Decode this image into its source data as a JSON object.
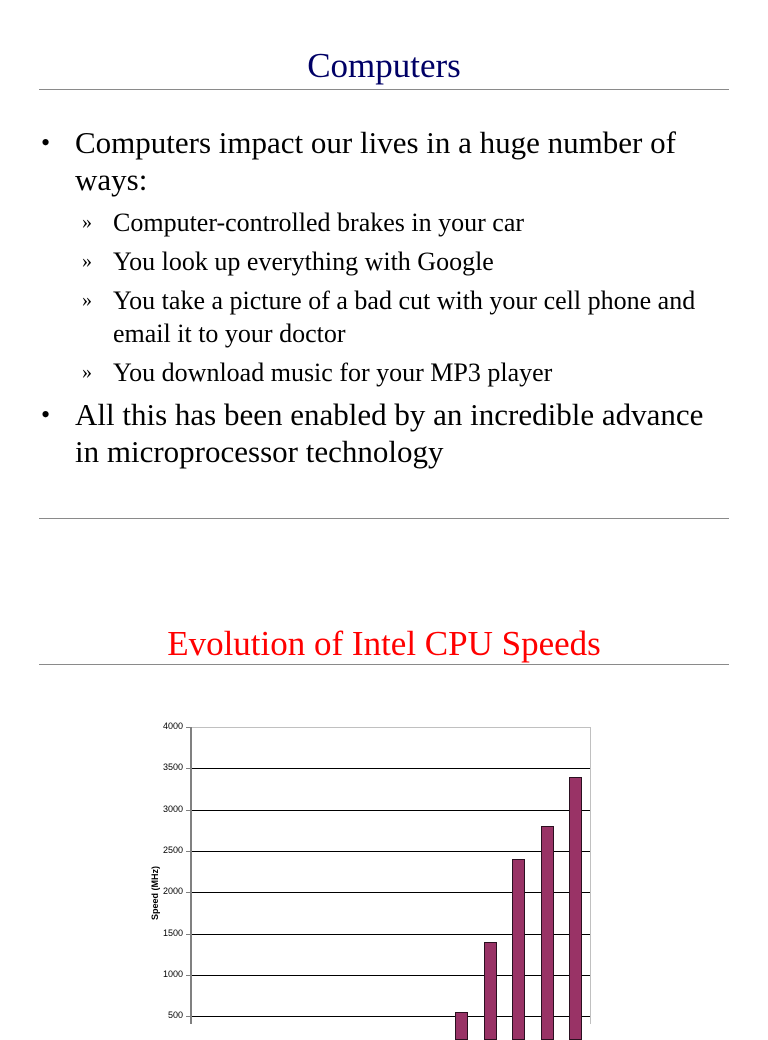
{
  "slide1": {
    "title": "Computers",
    "title_color": "#000066",
    "bullets": [
      {
        "text": "Computers impact our lives in a huge number of ways:",
        "subitems": [
          "Computer-controlled brakes in your car",
          "You look up everything with Google",
          "You take a picture of a bad cut with your cell phone and email it to your doctor",
          "You download music for your MP3 player"
        ]
      },
      {
        "text": "All this has been enabled by an incredible advance in microprocessor technology",
        "subitems": []
      }
    ],
    "bullet_glyph": "•",
    "subbullet_glyph": "»"
  },
  "slide2": {
    "title": "Evolution of Intel CPU Speeds",
    "title_color": "#ff0000"
  },
  "chart_data": {
    "type": "bar",
    "title": "",
    "xlabel": "",
    "ylabel": "Speed (MHz)",
    "ylim": [
      0,
      4000
    ],
    "yticks": [
      "4000",
      "3500",
      "3000",
      "2500",
      "2000",
      "1500",
      "1000",
      "500"
    ],
    "grid": true,
    "legend": null,
    "bar_color": "#993366",
    "categories_visible_note": "x-axis labels cut off below image",
    "visible_bars": [
      {
        "slot": 10,
        "value": 550
      },
      {
        "slot": 11,
        "value": 1400
      },
      {
        "slot": 12,
        "value": 2400
      },
      {
        "slot": 13,
        "value": 2800
      },
      {
        "slot": 14,
        "value": 3400
      }
    ]
  }
}
